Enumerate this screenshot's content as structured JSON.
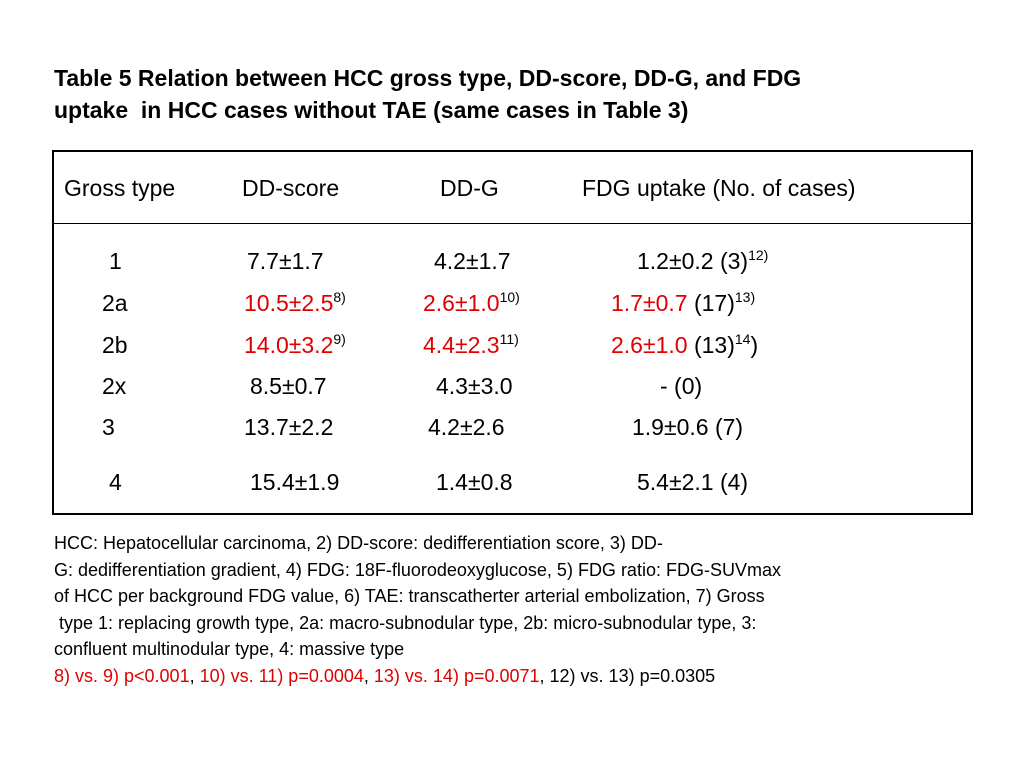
{
  "title": {
    "line1": "Table 5 Relation between HCC gross type, DD-score, DD-G, and FDG",
    "line2": "uptake  in HCC cases without TAE (same cases in Table 3)"
  },
  "table": {
    "headers": {
      "gross_type": "Gross type",
      "dd_score": "DD-score",
      "dd_g": "DD-G",
      "fdg": "FDG uptake (No. of cases)"
    },
    "rows": [
      {
        "type": "1",
        "dd_score": "7.7±1.7",
        "dd_score_ref": "",
        "dd_g": "4.2±1.7",
        "dd_g_ref": "",
        "fdg_value": "1.2±0.2",
        "fdg_count": " (3)",
        "fdg_ref": "12)",
        "fdg_close": ""
      },
      {
        "type": "2a",
        "dd_score": "10.5±2.5",
        "dd_score_ref": "8)",
        "dd_g": "2.6±1.0",
        "dd_g_ref": "10)",
        "fdg_value": "1.7±0.7",
        "fdg_count": " (17)",
        "fdg_ref": "13)",
        "fdg_close": ""
      },
      {
        "type": "2b",
        "dd_score": "14.0±3.2",
        "dd_score_ref": "9)",
        "dd_g": "4.4±2.3",
        "dd_g_ref": "11)",
        "fdg_value": "2.6±1.0",
        "fdg_count": " (13)",
        "fdg_ref": "14",
        "fdg_close": ")"
      },
      {
        "type": "2x",
        "dd_score": "8.5±0.7",
        "dd_score_ref": "",
        "dd_g": "4.3±3.0",
        "dd_g_ref": "",
        "fdg_value": "- (0)",
        "fdg_count": "",
        "fdg_ref": "",
        "fdg_close": ""
      },
      {
        "type": "3",
        "dd_score": "13.7±2.2",
        "dd_score_ref": "",
        "dd_g": "4.2±2.6",
        "dd_g_ref": "",
        "fdg_value": "1.9±0.6 (7)",
        "fdg_count": "",
        "fdg_ref": "",
        "fdg_close": ""
      },
      {
        "type": "4",
        "dd_score": "15.4±1.9",
        "dd_score_ref": "",
        "dd_g": "1.4±0.8",
        "dd_g_ref": "",
        "fdg_value": "5.4±2.1 (4)",
        "fdg_count": "",
        "fdg_ref": "",
        "fdg_close": ""
      }
    ]
  },
  "notes": {
    "lines": [
      "HCC: Hepatocellular carcinoma, 2) DD-score: dedifferentiation score, 3) DD-",
      "G: dedifferentiation gradient, 4) FDG: 18F-fluorodeoxyglucose, 5) FDG ratio: FDG-SUVmax",
      "of HCC per background FDG value, 6) TAE: transcatherter arterial embolization, 7) Gross",
      " type 1: replacing growth type, 2a: macro-subnodular type, 2b: micro-subnodular type, 3:",
      "confluent multinodular type, 4: massive type"
    ],
    "stats": {
      "s1": "8) vs. 9) p<0.001",
      "sep1": ", ",
      "s2": "10) vs. 11) p=0.0004",
      "sep2": ", ",
      "s3": "13) vs. 14) p=0.0071",
      "s4": ", 12) vs. 13) p=0.0305"
    }
  },
  "colors": {
    "significant": "#e00000",
    "text": "#000000"
  }
}
